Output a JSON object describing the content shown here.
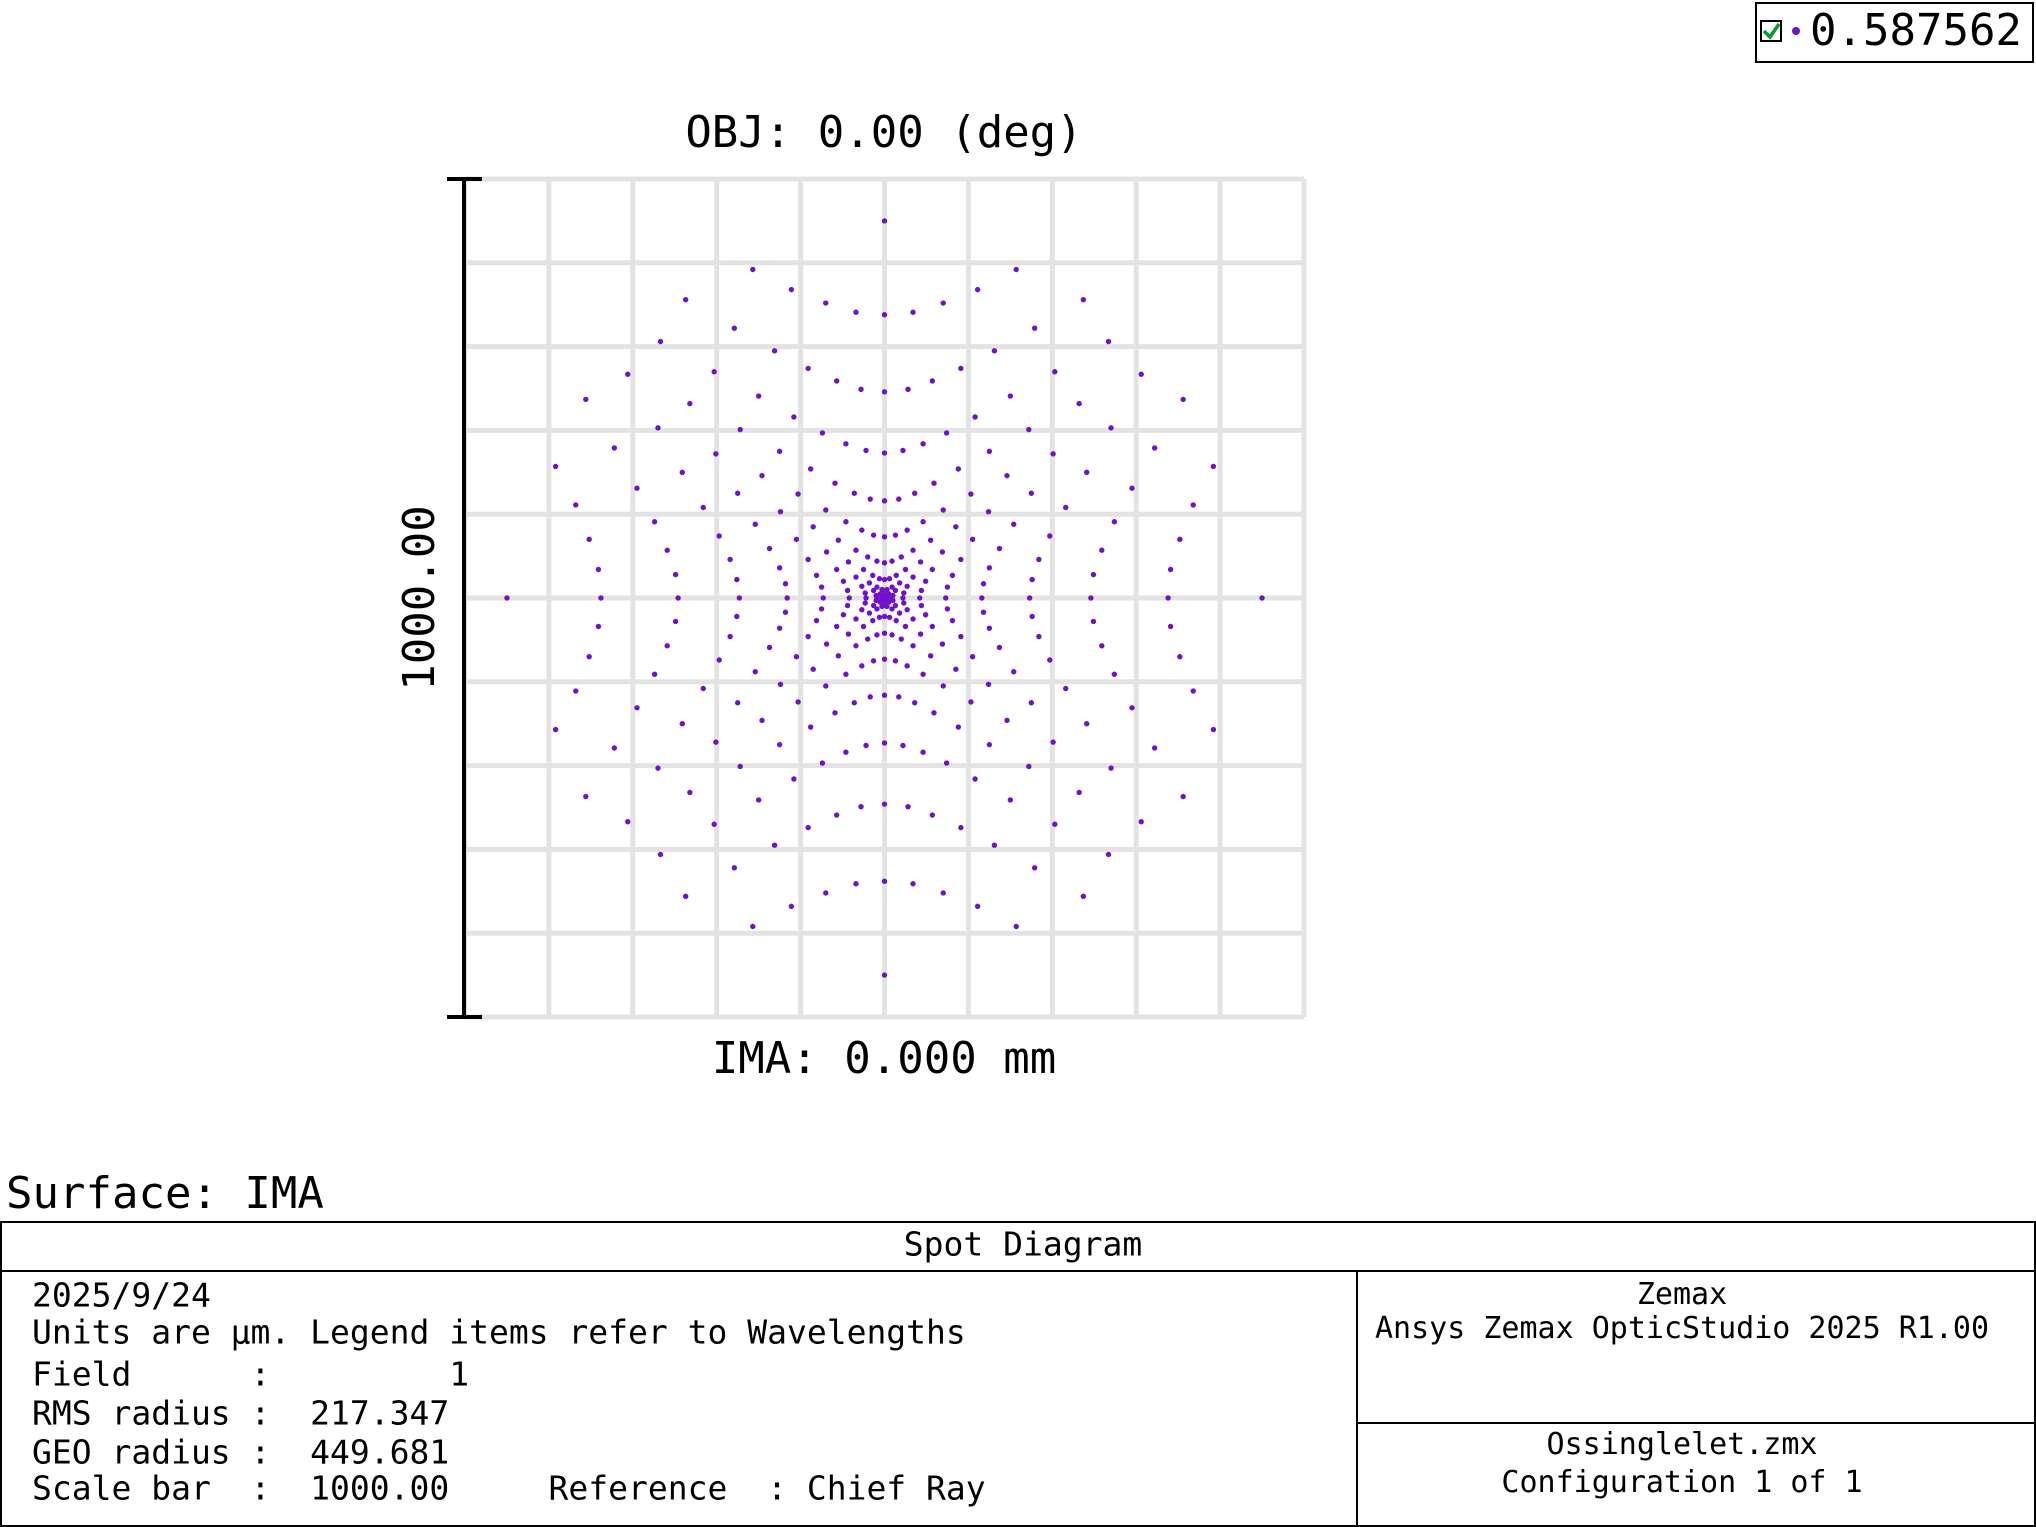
{
  "chart_data": {
    "type": "scatter",
    "title": "OBJ: 0.00 (deg)",
    "x_label": "IMA: 0.000 mm",
    "scale_bar": {
      "value": 1000,
      "label": "1000.00"
    },
    "xlim": [
      -500,
      500
    ],
    "ylim": [
      -500,
      500
    ],
    "xticks": [
      -500,
      -400,
      -300,
      -200,
      -100,
      0,
      100,
      200,
      300,
      400,
      500
    ],
    "yticks": [
      -500,
      -400,
      -300,
      -200,
      -100,
      0,
      100,
      200,
      300,
      400,
      500
    ],
    "grid": true,
    "legend": "top-right",
    "series": [
      {
        "name": "0.587562",
        "color": "#7012cc",
        "x": [
          -450,
          -392,
          -368,
          -352,
          -341,
          -338,
          -341,
          -352,
          -368,
          -392,
          -356,
          -322,
          -295,
          -274,
          -259,
          -249,
          -246,
          -249,
          -259,
          -274,
          -295,
          -322,
          -356,
          -306,
          -270,
          -241,
          -216,
          -197,
          -184,
          -176,
          -173,
          -176,
          -184,
          -197,
          -216,
          -241,
          -270,
          -306,
          -267,
          -232,
          -201,
          -175,
          -154,
          -137,
          -125,
          -118,
          -116,
          -118,
          -125,
          -137,
          -154,
          -175,
          -201,
          -232,
          -267,
          -237,
          -203,
          -172,
          -146,
          -124,
          -105,
          -91,
          -81,
          -75,
          -73,
          -75,
          -81,
          -91,
          -105,
          -124,
          -146,
          -172,
          -203,
          -237,
          -179,
          -150,
          -125,
          -103,
          -85,
          -69,
          -57,
          -49,
          -44,
          -42,
          -44,
          -49,
          -57,
          -69,
          -85,
          -103,
          -125,
          -150,
          -179,
          -157,
          -131,
          -108,
          -88,
          -70,
          -55,
          -43,
          -34,
          -27,
          -23,
          -22,
          -23,
          -27,
          -34,
          -43,
          -55,
          -70,
          -88,
          -108,
          -131,
          -157,
          -111,
          -91,
          -74,
          -59,
          -46,
          -34,
          -25,
          -18,
          -13,
          -10,
          -9,
          -10,
          -13,
          -18,
          -25,
          -34,
          -46,
          -59,
          -74,
          -91,
          -111,
          -70,
          -57,
          -46,
          -36,
          -27,
          -20,
          -14,
          -9,
          -5,
          -3,
          -3,
          -3,
          -5,
          -9,
          -14,
          -20,
          -27,
          -36,
          -46,
          -57,
          -70,
          -34,
          -28,
          -22,
          -17,
          -13,
          -9,
          -6,
          -3,
          -2,
          -1,
          0,
          -1,
          -2,
          -3,
          -6,
          -9,
          -13,
          -17,
          -22,
          -28,
          -34,
          0,
          0,
          0,
          0,
          0,
          0,
          0,
          0,
          0,
          0,
          0,
          0,
          0,
          0,
          0,
          0,
          0,
          0,
          0,
          0,
          0,
          0,
          0,
          34,
          28,
          22,
          17,
          13,
          9,
          6,
          3,
          2,
          1,
          0,
          1,
          2,
          3,
          6,
          9,
          13,
          17,
          22,
          28,
          34,
          70,
          57,
          46,
          36,
          27,
          20,
          14,
          9,
          5,
          3,
          3,
          3,
          5,
          9,
          14,
          20,
          27,
          36,
          46,
          57,
          70,
          111,
          91,
          74,
          59,
          46,
          34,
          25,
          18,
          13,
          10,
          9,
          10,
          13,
          18,
          25,
          34,
          46,
          59,
          74,
          91,
          111,
          157,
          131,
          108,
          88,
          70,
          55,
          43,
          34,
          27,
          23,
          22,
          23,
          27,
          34,
          43,
          55,
          70,
          88,
          108,
          131,
          157,
          179,
          150,
          125,
          103,
          85,
          69,
          57,
          49,
          44,
          42,
          44,
          49,
          57,
          69,
          85,
          103,
          125,
          150,
          179,
          237,
          203,
          172,
          146,
          124,
          105,
          91,
          81,
          75,
          73,
          75,
          81,
          91,
          105,
          124,
          146,
          172,
          203,
          237,
          267,
          232,
          201,
          175,
          154,
          137,
          125,
          118,
          116,
          118,
          125,
          137,
          154,
          175,
          201,
          232,
          267,
          306,
          270,
          241,
          216,
          197,
          184,
          176,
          173,
          176,
          184,
          197,
          216,
          241,
          270,
          306,
          356,
          322,
          295,
          274,
          259,
          249,
          246,
          249,
          259,
          274,
          295,
          322,
          356,
          392,
          368,
          352,
          341,
          338,
          341,
          352,
          368,
          392,
          450
        ],
        "values": [
          0,
          -157,
          -111,
          -70,
          -34,
          0,
          34,
          70,
          111,
          157,
          -237,
          -179,
          -131,
          -91,
          -57,
          -28,
          0,
          28,
          57,
          91,
          131,
          179,
          237,
          -267,
          -203,
          -150,
          -108,
          -74,
          -46,
          -22,
          0,
          22,
          46,
          74,
          108,
          150,
          203,
          267,
          -306,
          -232,
          -172,
          -125,
          -88,
          -59,
          -36,
          -17,
          0,
          17,
          36,
          59,
          88,
          125,
          172,
          232,
          306,
          -356,
          -270,
          -201,
          -146,
          -103,
          -70,
          -46,
          -27,
          -13,
          0,
          13,
          27,
          46,
          70,
          103,
          146,
          201,
          270,
          356,
          -322,
          -241,
          -175,
          -124,
          -85,
          -55,
          -34,
          -20,
          -9,
          0,
          9,
          20,
          34,
          55,
          85,
          124,
          175,
          241,
          322,
          -392,
          -295,
          -216,
          -154,
          -105,
          -69,
          -43,
          -25,
          -14,
          -6,
          0,
          6,
          14,
          25,
          43,
          69,
          105,
          154,
          216,
          295,
          392,
          -368,
          -274,
          -197,
          -137,
          -91,
          -57,
          -34,
          -18,
          -9,
          -3,
          0,
          3,
          9,
          18,
          34,
          57,
          91,
          137,
          197,
          274,
          368,
          -352,
          -259,
          -184,
          -125,
          -81,
          -49,
          -27,
          -13,
          -5,
          -2,
          0,
          2,
          5,
          13,
          27,
          49,
          81,
          125,
          184,
          259,
          352,
          -341,
          -249,
          -176,
          -118,
          -75,
          -44,
          -23,
          -10,
          -3,
          -1,
          0,
          1,
          3,
          10,
          23,
          44,
          75,
          118,
          176,
          249,
          341,
          -450,
          -338,
          -246,
          -173,
          -116,
          -73,
          -42,
          -22,
          -9,
          -3,
          0,
          0,
          0,
          3,
          9,
          22,
          42,
          73,
          116,
          173,
          246,
          338,
          450,
          -341,
          -249,
          -176,
          -118,
          -75,
          -44,
          -23,
          -10,
          -3,
          -1,
          0,
          1,
          3,
          10,
          23,
          44,
          75,
          118,
          176,
          249,
          341,
          -352,
          -259,
          -184,
          -125,
          -81,
          -49,
          -27,
          -13,
          -5,
          -2,
          0,
          2,
          5,
          13,
          27,
          49,
          81,
          125,
          184,
          259,
          352,
          -368,
          -274,
          -197,
          -137,
          -91,
          -57,
          -34,
          -18,
          -9,
          -3,
          0,
          3,
          9,
          18,
          34,
          57,
          91,
          137,
          197,
          274,
          368,
          -392,
          -295,
          -216,
          -154,
          -105,
          -69,
          -43,
          -25,
          -14,
          -6,
          0,
          6,
          14,
          25,
          43,
          69,
          105,
          154,
          216,
          295,
          392,
          -322,
          -241,
          -175,
          -124,
          -85,
          -55,
          -34,
          -20,
          -9,
          0,
          9,
          20,
          34,
          55,
          85,
          124,
          175,
          241,
          322,
          -356,
          -270,
          -201,
          -146,
          -103,
          -70,
          -46,
          -27,
          -13,
          0,
          13,
          27,
          46,
          70,
          103,
          146,
          201,
          270,
          356,
          -306,
          -232,
          -172,
          -125,
          -88,
          -59,
          -36,
          -17,
          0,
          17,
          36,
          59,
          88,
          125,
          172,
          232,
          306,
          -267,
          -203,
          -150,
          -108,
          -74,
          -46,
          -22,
          0,
          22,
          46,
          74,
          108,
          150,
          203,
          267,
          -237,
          -179,
          -131,
          -91,
          -57,
          -28,
          0,
          28,
          57,
          91,
          131,
          179,
          237,
          -157,
          -111,
          -70,
          -34,
          0,
          34,
          70,
          111,
          157,
          0
        ]
      }
    ]
  },
  "surface_label": "Surface: IMA",
  "footer": {
    "title": "Spot Diagram",
    "date": "2025/9/24",
    "note": "Units are µm. Legend items refer to Wavelengths",
    "lines": [
      "Field      :         1",
      "RMS radius :  217.347",
      "GEO radius :  449.681",
      "Scale bar  :  1000.00     Reference  : Chief Ray"
    ],
    "company": "Zemax",
    "software": "Ansys Zemax OpticStudio 2025 R1.00",
    "file": "Ossinglelet.zmx",
    "configuration": "Configuration 1 of 1"
  }
}
